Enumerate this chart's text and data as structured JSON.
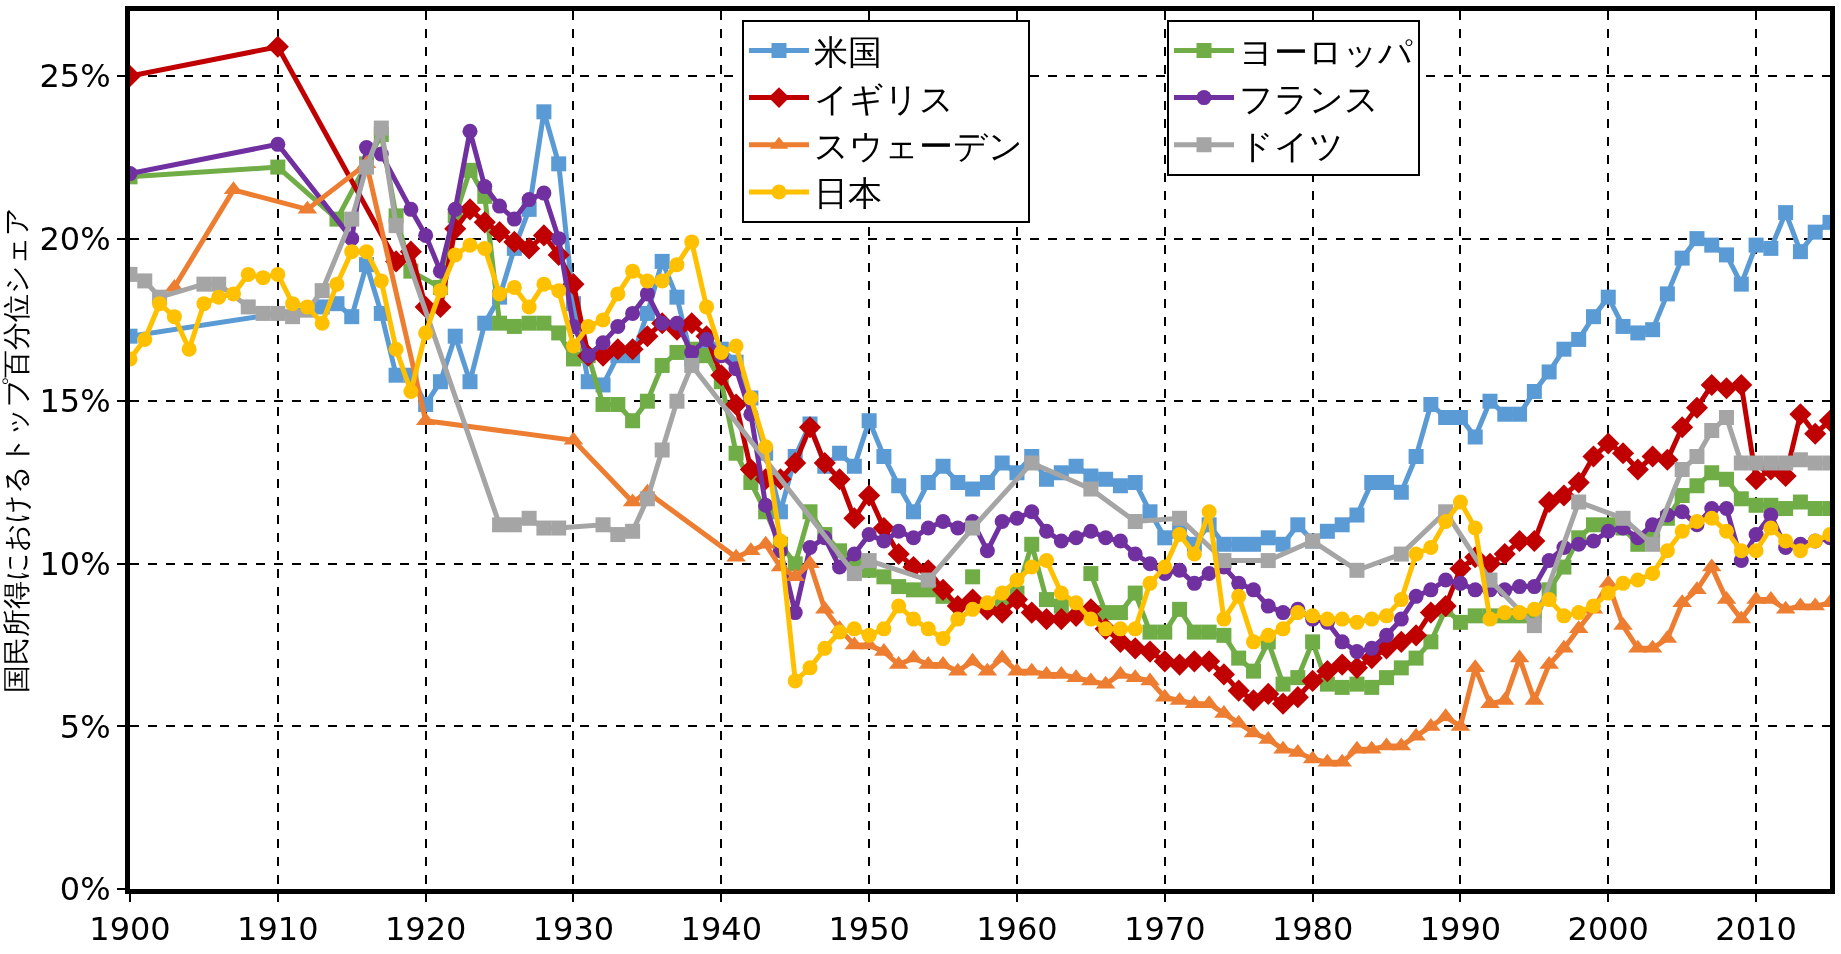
{
  "chart_data": {
    "type": "line",
    "ylabel": "国民所得におけるトップ百分位シェア",
    "xlim": [
      1900,
      2015
    ],
    "xticks": [
      1900,
      1910,
      1920,
      1930,
      1940,
      1950,
      1960,
      1970,
      1980,
      1990,
      2000,
      2010
    ],
    "ylim": [
      0,
      27
    ],
    "yticks": [
      {
        "value": 0,
        "label": "0%"
      },
      {
        "value": 5,
        "label": "5%"
      },
      {
        "value": 10,
        "label": "10%"
      },
      {
        "value": 15,
        "label": "15%"
      },
      {
        "value": 20,
        "label": "20%"
      },
      {
        "value": 25,
        "label": "25%"
      }
    ],
    "grid": true,
    "legend": "top",
    "line_style": "solid",
    "series": [
      {
        "name": "米国",
        "color": "#5b9bd5",
        "marker": "square",
        "x": [
          1900,
          1913,
          1914,
          1915,
          1916,
          1917,
          1918,
          1919,
          1920,
          1921,
          1922,
          1923,
          1924,
          1925,
          1926,
          1927,
          1928,
          1929,
          1930,
          1931,
          1932,
          1933,
          1934,
          1935,
          1936,
          1937,
          1938,
          1939,
          1940,
          1941,
          1942,
          1943,
          1944,
          1945,
          1946,
          1947,
          1948,
          1949,
          1950,
          1951,
          1952,
          1953,
          1954,
          1955,
          1956,
          1957,
          1958,
          1959,
          1960,
          1961,
          1962,
          1963,
          1964,
          1965,
          1966,
          1967,
          1968,
          1969,
          1970,
          1971,
          1972,
          1973,
          1974,
          1975,
          1976,
          1977,
          1978,
          1979,
          1980,
          1981,
          1982,
          1983,
          1984,
          1985,
          1986,
          1987,
          1988,
          1989,
          1990,
          1991,
          1992,
          1993,
          1994,
          1995,
          1996,
          1997,
          1998,
          1999,
          2000,
          2001,
          2002,
          2003,
          2004,
          2005,
          2006,
          2007,
          2008,
          2009,
          2010,
          2011,
          2012,
          2013,
          2014,
          2015
        ],
        "values": [
          17.0,
          17.9,
          18.0,
          17.6,
          19.2,
          17.7,
          15.8,
          15.8,
          14.9,
          15.6,
          17.0,
          15.6,
          17.4,
          18.2,
          19.7,
          20.9,
          23.9,
          22.3,
          18.0,
          15.6,
          15.5,
          16.4,
          16.4,
          17.7,
          19.3,
          18.2,
          16.3,
          16.8,
          16.6,
          16.2,
          15.1,
          13.4,
          11.6,
          13.3,
          14.3,
          13.0,
          13.4,
          13.0,
          14.4,
          13.3,
          12.4,
          11.6,
          12.5,
          13.0,
          12.5,
          12.3,
          12.5,
          13.1,
          12.8,
          13.3,
          12.6,
          12.8,
          13.0,
          12.7,
          12.6,
          12.4,
          12.5,
          11.6,
          10.8,
          11.0,
          10.6,
          11.2,
          10.6,
          10.6,
          10.6,
          10.8,
          10.6,
          11.2,
          10.7,
          11.0,
          11.2,
          11.5,
          12.5,
          12.5,
          12.2,
          13.3,
          14.9,
          14.5,
          14.5,
          13.9,
          15.0,
          14.6,
          14.6,
          15.3,
          15.9,
          16.6,
          16.9,
          17.6,
          18.2,
          17.3,
          17.1,
          17.2,
          18.3,
          19.4,
          20.0,
          19.8,
          19.5,
          18.6,
          19.8,
          19.7,
          20.8,
          19.6,
          20.2,
          20.5
        ]
      },
      {
        "name": "ヨーロッパ",
        "color": "#70ad47",
        "marker": "square",
        "x": [
          1900,
          1910,
          1914,
          1916,
          1917,
          1918,
          1919,
          1921,
          1922,
          1923,
          1924,
          1925,
          1926,
          1927,
          1928,
          1929,
          1930,
          1931,
          1932,
          1933,
          1934,
          1935,
          1936,
          1937,
          1938,
          1939,
          1940,
          1941,
          1942,
          1943,
          1944,
          1945,
          1946,
          1947,
          1948,
          1949,
          1950,
          1951,
          1952,
          1953,
          1954,
          1955,
          1956,
          1957,
          1958,
          1959,
          1960,
          1961,
          1962,
          1963,
          1964,
          1965,
          1966,
          1967,
          1968,
          1969,
          1970,
          1971,
          1972,
          1973,
          1974,
          1975,
          1976,
          1977,
          1978,
          1979,
          1980,
          1981,
          1982,
          1983,
          1984,
          1985,
          1986,
          1987,
          1988,
          1989,
          1990,
          1991,
          1992,
          1993,
          1994,
          1995,
          1996,
          1997,
          1998,
          1999,
          2000,
          2001,
          2002,
          2003,
          2004,
          2005,
          2006,
          2007,
          2008,
          2009,
          2010,
          2011,
          2012,
          2013,
          2014,
          2015
        ],
        "values": [
          21.9,
          22.2,
          20.6,
          22.3,
          23.2,
          20.7,
          19.0,
          18.5,
          20.7,
          22.1,
          21.3,
          17.4,
          17.3,
          17.4,
          17.4,
          17.1,
          16.3,
          16.4,
          14.9,
          14.9,
          14.4,
          15.0,
          16.1,
          16.5,
          16.6,
          16.4,
          15.6,
          13.4,
          12.5,
          11.6,
          10.6,
          10.0,
          11.6,
          10.9,
          10.4,
          10.0,
          9.8,
          9.6,
          9.3,
          9.2,
          9.2,
          9.0,
          null,
          9.6,
          null,
          8.8,
          9.1,
          10.6,
          8.9,
          8.7,
          null,
          9.7,
          8.5,
          8.5,
          9.1,
          7.9,
          7.9,
          8.6,
          7.9,
          7.9,
          7.8,
          7.1,
          6.7,
          7.6,
          6.3,
          6.5,
          7.6,
          6.3,
          6.2,
          6.3,
          6.2,
          6.5,
          6.8,
          7.1,
          7.6,
          8.6,
          8.2,
          8.4,
          8.4,
          8.4,
          8.4,
          8.4,
          9.2,
          9.9,
          10.8,
          11.2,
          11.2,
          11.1,
          10.6,
          11.0,
          11.4,
          12.1,
          12.4,
          12.8,
          12.6,
          12.0,
          11.8,
          11.8,
          11.7,
          11.9,
          11.7,
          11.7
        ]
      },
      {
        "name": "イギリス",
        "color": "#c00000",
        "marker": "diamond",
        "x": [
          1900,
          1910,
          1918,
          1919,
          1920,
          1921,
          1922,
          1923,
          1924,
          1925,
          1926,
          1927,
          1928,
          1929,
          1930,
          1931,
          1932,
          1933,
          1934,
          1935,
          1936,
          1937,
          1938,
          1939,
          1940,
          1941,
          1942,
          1943,
          1944,
          1945,
          1946,
          1947,
          1948,
          1949,
          1950,
          1951,
          1952,
          1953,
          1954,
          1955,
          1956,
          1957,
          1958,
          1959,
          1960,
          1961,
          1962,
          1963,
          1964,
          1965,
          1966,
          1967,
          1968,
          1969,
          1970,
          1971,
          1972,
          1973,
          1974,
          1975,
          1976,
          1977,
          1978,
          1979,
          1980,
          1981,
          1982,
          1983,
          1984,
          1985,
          1986,
          1987,
          1988,
          1989,
          1990,
          1991,
          1992,
          1993,
          1994,
          1995,
          1996,
          1997,
          1998,
          1999,
          2000,
          2001,
          2002,
          2003,
          2004,
          2005,
          2006,
          2007,
          2008,
          2009,
          2010,
          2011,
          2012,
          2013,
          2014,
          2015
        ],
        "values": [
          25.0,
          25.9,
          19.3,
          19.6,
          17.9,
          17.9,
          20.3,
          20.9,
          20.5,
          20.2,
          19.9,
          19.7,
          20.1,
          19.5,
          18.6,
          16.4,
          16.4,
          16.6,
          16.6,
          17.0,
          17.4,
          17.2,
          17.4,
          17.0,
          15.8,
          14.9,
          12.9,
          12.6,
          12.6,
          13.1,
          14.2,
          13.1,
          12.6,
          11.4,
          12.1,
          11.1,
          10.3,
          9.9,
          9.8,
          9.2,
          8.7,
          8.9,
          8.6,
          8.5,
          8.9,
          8.5,
          8.3,
          8.3,
          8.4,
          8.6,
          8.0,
          7.6,
          7.4,
          7.3,
          7.0,
          6.9,
          7.0,
          7.0,
          6.6,
          6.1,
          5.8,
          6.0,
          5.7,
          5.9,
          6.4,
          6.7,
          6.9,
          6.8,
          7.1,
          7.4,
          7.6,
          7.8,
          8.5,
          8.7,
          9.85,
          10.2,
          10.0,
          10.3,
          10.7,
          10.7,
          11.9,
          12.1,
          12.5,
          13.3,
          13.7,
          13.4,
          12.9,
          13.3,
          13.2,
          14.2,
          14.8,
          15.5,
          15.4,
          15.5,
          12.6,
          12.9,
          12.7,
          14.6,
          14.0,
          14.4
        ]
      },
      {
        "name": "フランス",
        "color": "#7030a0",
        "marker": "circle",
        "x": [
          1900,
          1910,
          1915,
          1916,
          1917,
          1919,
          1920,
          1921,
          1922,
          1923,
          1924,
          1925,
          1926,
          1927,
          1928,
          1929,
          1930,
          1931,
          1932,
          1933,
          1934,
          1935,
          1936,
          1937,
          1938,
          1939,
          1940,
          1941,
          1942,
          1943,
          1944,
          1945,
          1946,
          1947,
          1948,
          1949,
          1950,
          1951,
          1952,
          1953,
          1954,
          1955,
          1956,
          1957,
          1958,
          1959,
          1960,
          1961,
          1962,
          1963,
          1964,
          1965,
          1966,
          1967,
          1968,
          1969,
          1970,
          1971,
          1972,
          1973,
          1974,
          1975,
          1976,
          1977,
          1978,
          1979,
          1980,
          1981,
          1982,
          1983,
          1984,
          1985,
          1986,
          1987,
          1988,
          1989,
          1990,
          1991,
          1992,
          1993,
          1994,
          1995,
          1996,
          1997,
          1998,
          1999,
          2000,
          2001,
          2002,
          2003,
          2004,
          2005,
          2006,
          2007,
          2008,
          2009,
          2010,
          2011,
          2012,
          2013,
          2014,
          2015
        ],
        "values": [
          22.0,
          22.9,
          20.0,
          22.8,
          22.6,
          20.9,
          20.1,
          19.0,
          20.9,
          23.3,
          21.6,
          21.0,
          20.6,
          21.2,
          21.4,
          20.0,
          17.3,
          16.4,
          16.8,
          17.3,
          17.7,
          18.3,
          17.4,
          17.4,
          16.5,
          16.9,
          16.4,
          16.0,
          14.6,
          11.8,
          10.4,
          8.5,
          10.5,
          10.8,
          9.9,
          10.3,
          10.9,
          10.7,
          11.0,
          10.8,
          11.1,
          11.3,
          11.1,
          11.3,
          10.4,
          11.3,
          11.4,
          11.6,
          11.0,
          10.7,
          10.8,
          11.0,
          10.8,
          10.7,
          10.3,
          10.0,
          9.7,
          9.8,
          9.4,
          9.7,
          9.9,
          9.4,
          9.2,
          8.7,
          8.5,
          8.6,
          8.3,
          8.2,
          7.6,
          7.3,
          7.4,
          7.8,
          8.3,
          9.0,
          9.2,
          9.5,
          9.4,
          9.2,
          9.2,
          9.2,
          9.3,
          9.3,
          10.1,
          10.5,
          10.6,
          10.7,
          11.0,
          11.1,
          10.8,
          11.2,
          11.5,
          11.6,
          11.2,
          11.7,
          11.7,
          10.1,
          10.9,
          11.5,
          10.5,
          10.6,
          10.7,
          10.8
        ]
      },
      {
        "name": "スウェーデン",
        "color": "#ed7d31",
        "marker": "triangle",
        "x": [
          1903,
          1907,
          1912,
          1916,
          1920,
          1930,
          1934,
          1935,
          1941,
          1942,
          1943,
          1944,
          1945,
          1946,
          1947,
          1948,
          1949,
          1950,
          1951,
          1952,
          1953,
          1954,
          1955,
          1956,
          1957,
          1958,
          1959,
          1960,
          1961,
          1962,
          1963,
          1964,
          1965,
          1966,
          1967,
          1968,
          1969,
          1970,
          1971,
          1972,
          1973,
          1974,
          1975,
          1976,
          1977,
          1978,
          1979,
          1980,
          1981,
          1982,
          1983,
          1984,
          1985,
          1986,
          1987,
          1988,
          1989,
          1990,
          1991,
          1992,
          1993,
          1994,
          1995,
          1996,
          1997,
          1998,
          1999,
          2000,
          2001,
          2002,
          2003,
          2004,
          2005,
          2006,
          2007,
          2008,
          2009,
          2010,
          2011,
          2012,
          2013,
          2014,
          2015
        ],
        "values": [
          18.5,
          21.5,
          20.9,
          22.3,
          14.4,
          13.8,
          11.9,
          12.2,
          10.2,
          10.4,
          10.6,
          9.9,
          9.6,
          10.0,
          8.6,
          8.0,
          7.5,
          7.5,
          7.3,
          6.9,
          7.1,
          6.9,
          6.9,
          6.7,
          7.0,
          6.7,
          7.1,
          6.7,
          6.7,
          6.6,
          6.6,
          6.5,
          6.4,
          6.3,
          6.6,
          6.5,
          6.4,
          5.9,
          5.8,
          5.7,
          5.7,
          5.4,
          5.1,
          4.8,
          4.6,
          4.3,
          4.2,
          4.0,
          3.9,
          3.9,
          4.3,
          4.3,
          4.4,
          4.4,
          4.7,
          5.0,
          5.3,
          5.0,
          6.8,
          5.7,
          5.8,
          7.1,
          5.8,
          6.9,
          7.4,
          8.0,
          8.6,
          9.4,
          8.1,
          7.4,
          7.4,
          7.7,
          8.8,
          9.2,
          9.9,
          8.9,
          8.3,
          8.9,
          8.9,
          8.6,
          8.7,
          8.7,
          8.8
        ]
      },
      {
        "name": "ドイツ",
        "color": "#a5a5a5",
        "marker": "square",
        "x": [
          1900,
          1901,
          1902,
          1905,
          1906,
          1908,
          1909,
          1910,
          1911,
          1912,
          1913,
          1915,
          1916,
          1917,
          1918,
          1925,
          1926,
          1927,
          1928,
          1929,
          1932,
          1933,
          1934,
          1935,
          1936,
          1937,
          1938,
          1949,
          1950,
          1954,
          1957,
          1961,
          1965,
          1968,
          1971,
          1974,
          1977,
          1980,
          1983,
          1986,
          1989,
          1992,
          1995,
          1998,
          2001,
          2003,
          2005,
          2006,
          2007,
          2008,
          2009,
          2010,
          2011,
          2012,
          2013,
          2014,
          2015
        ],
        "values": [
          18.9,
          18.7,
          18.2,
          18.6,
          18.6,
          17.9,
          17.7,
          17.7,
          17.6,
          17.8,
          18.4,
          20.6,
          22.2,
          23.4,
          20.4,
          11.2,
          11.2,
          11.4,
          11.1,
          11.1,
          11.2,
          10.9,
          11.0,
          12.0,
          13.5,
          15.0,
          16.1,
          9.7,
          10.1,
          9.5,
          11.1,
          13.1,
          12.3,
          11.3,
          11.4,
          10.1,
          10.1,
          10.7,
          9.8,
          10.3,
          11.6,
          9.5,
          8.1,
          11.9,
          11.4,
          10.6,
          12.9,
          13.3,
          14.1,
          14.5,
          13.1,
          13.1,
          13.1,
          13.1,
          13.2,
          13.1,
          13.1
        ]
      },
      {
        "name": "日本",
        "color": "#ffc000",
        "marker": "circle",
        "x": [
          1900,
          1901,
          1902,
          1903,
          1904,
          1905,
          1906,
          1907,
          1908,
          1909,
          1910,
          1911,
          1912,
          1913,
          1914,
          1915,
          1916,
          1917,
          1918,
          1919,
          1920,
          1921,
          1922,
          1923,
          1924,
          1925,
          1926,
          1927,
          1928,
          1929,
          1930,
          1931,
          1932,
          1933,
          1934,
          1935,
          1936,
          1937,
          1938,
          1939,
          1940,
          1941,
          1942,
          1943,
          1944,
          1945,
          1946,
          1947,
          1948,
          1949,
          1950,
          1951,
          1952,
          1953,
          1954,
          1955,
          1956,
          1957,
          1958,
          1959,
          1960,
          1961,
          1962,
          1963,
          1964,
          1965,
          1966,
          1967,
          1968,
          1969,
          1970,
          1971,
          1972,
          1973,
          1974,
          1975,
          1976,
          1977,
          1978,
          1979,
          1980,
          1981,
          1982,
          1983,
          1984,
          1985,
          1986,
          1987,
          1988,
          1989,
          1990,
          1991,
          1992,
          1993,
          1994,
          1995,
          1996,
          1997,
          1998,
          1999,
          2000,
          2001,
          2002,
          2003,
          2004,
          2005,
          2006,
          2007,
          2008,
          2009,
          2010,
          2011,
          2012,
          2013,
          2014,
          2015
        ],
        "values": [
          16.3,
          16.9,
          18.0,
          17.6,
          16.6,
          18.0,
          18.2,
          18.3,
          18.9,
          18.8,
          18.9,
          18.0,
          17.9,
          17.4,
          18.6,
          19.6,
          19.6,
          18.7,
          16.6,
          15.3,
          17.1,
          18.4,
          19.5,
          19.8,
          19.7,
          18.3,
          18.5,
          17.9,
          18.6,
          18.4,
          16.7,
          17.3,
          17.5,
          18.3,
          19.0,
          18.7,
          18.7,
          19.2,
          19.9,
          17.9,
          16.5,
          16.7,
          15.1,
          13.6,
          10.7,
          6.4,
          6.8,
          7.4,
          7.9,
          8.0,
          7.8,
          8.0,
          8.7,
          8.3,
          8.0,
          7.7,
          8.3,
          8.6,
          8.8,
          9.1,
          9.5,
          9.9,
          10.1,
          9.1,
          8.8,
          8.3,
          8.0,
          8.0,
          8.0,
          9.4,
          9.9,
          10.9,
          10.3,
          11.6,
          8.3,
          9.0,
          7.6,
          7.8,
          8.0,
          8.5,
          8.4,
          8.3,
          8.3,
          8.2,
          8.3,
          8.4,
          8.9,
          10.3,
          10.5,
          11.3,
          11.9,
          11.1,
          8.3,
          8.5,
          8.5,
          8.6,
          8.9,
          8.4,
          8.5,
          8.7,
          9.1,
          9.4,
          9.5,
          9.7,
          10.4,
          11.0,
          11.3,
          11.4,
          11.0,
          10.4,
          10.4,
          11.1,
          10.7,
          10.4,
          10.7,
          10.9
        ]
      }
    ]
  }
}
